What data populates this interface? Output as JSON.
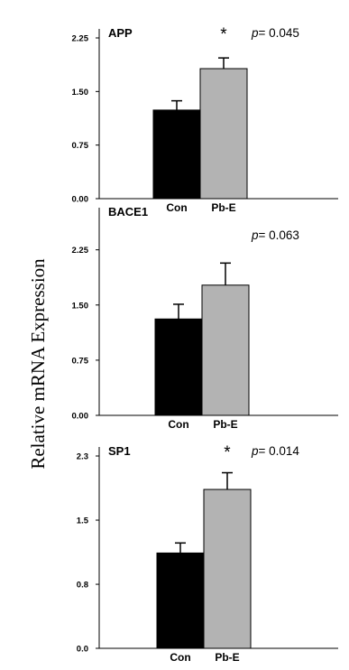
{
  "figure": {
    "ylabel": "Relative mRNA Expression"
  },
  "chart_data": [
    {
      "type": "bar",
      "title": "APP",
      "categories": [
        "Con",
        "Pb-E"
      ],
      "values": [
        1.24,
        1.82
      ],
      "errors": [
        0.13,
        0.15
      ],
      "yticks": [
        "0.00",
        "0.75",
        "1.50",
        "2.25"
      ],
      "ylim": [
        0,
        2.25
      ],
      "significance": [
        "",
        "*"
      ],
      "annotation": {
        "prefix": "p",
        "text": "= 0.045"
      },
      "colors": [
        "#000000",
        "#b3b3b3"
      ]
    },
    {
      "type": "bar",
      "title": "BACE1",
      "categories": [
        "Con",
        "Pb-E"
      ],
      "values": [
        1.31,
        1.77
      ],
      "errors": [
        0.2,
        0.3
      ],
      "yticks": [
        "0.00",
        "0.75",
        "1.50",
        "2.25"
      ],
      "ylim": [
        0,
        2.7
      ],
      "significance": [
        "",
        ""
      ],
      "annotation": {
        "prefix": "p",
        "text": "= 0.063"
      },
      "colors": [
        "#000000",
        "#b3b3b3"
      ]
    },
    {
      "type": "bar",
      "title": "SP1",
      "categories": [
        "Con",
        "Pb-E"
      ],
      "values": [
        1.14,
        1.9
      ],
      "errors": [
        0.12,
        0.2
      ],
      "yticks": [
        "0.0",
        "0.8",
        "1.5",
        "2.3"
      ],
      "ytick_values": [
        0,
        0.766,
        1.533,
        2.3
      ],
      "ylim": [
        0,
        2.3
      ],
      "significance": [
        "",
        "*"
      ],
      "annotation": {
        "prefix": "p",
        "text": "= 0.014"
      },
      "colors": [
        "#000000",
        "#b3b3b3"
      ]
    }
  ]
}
